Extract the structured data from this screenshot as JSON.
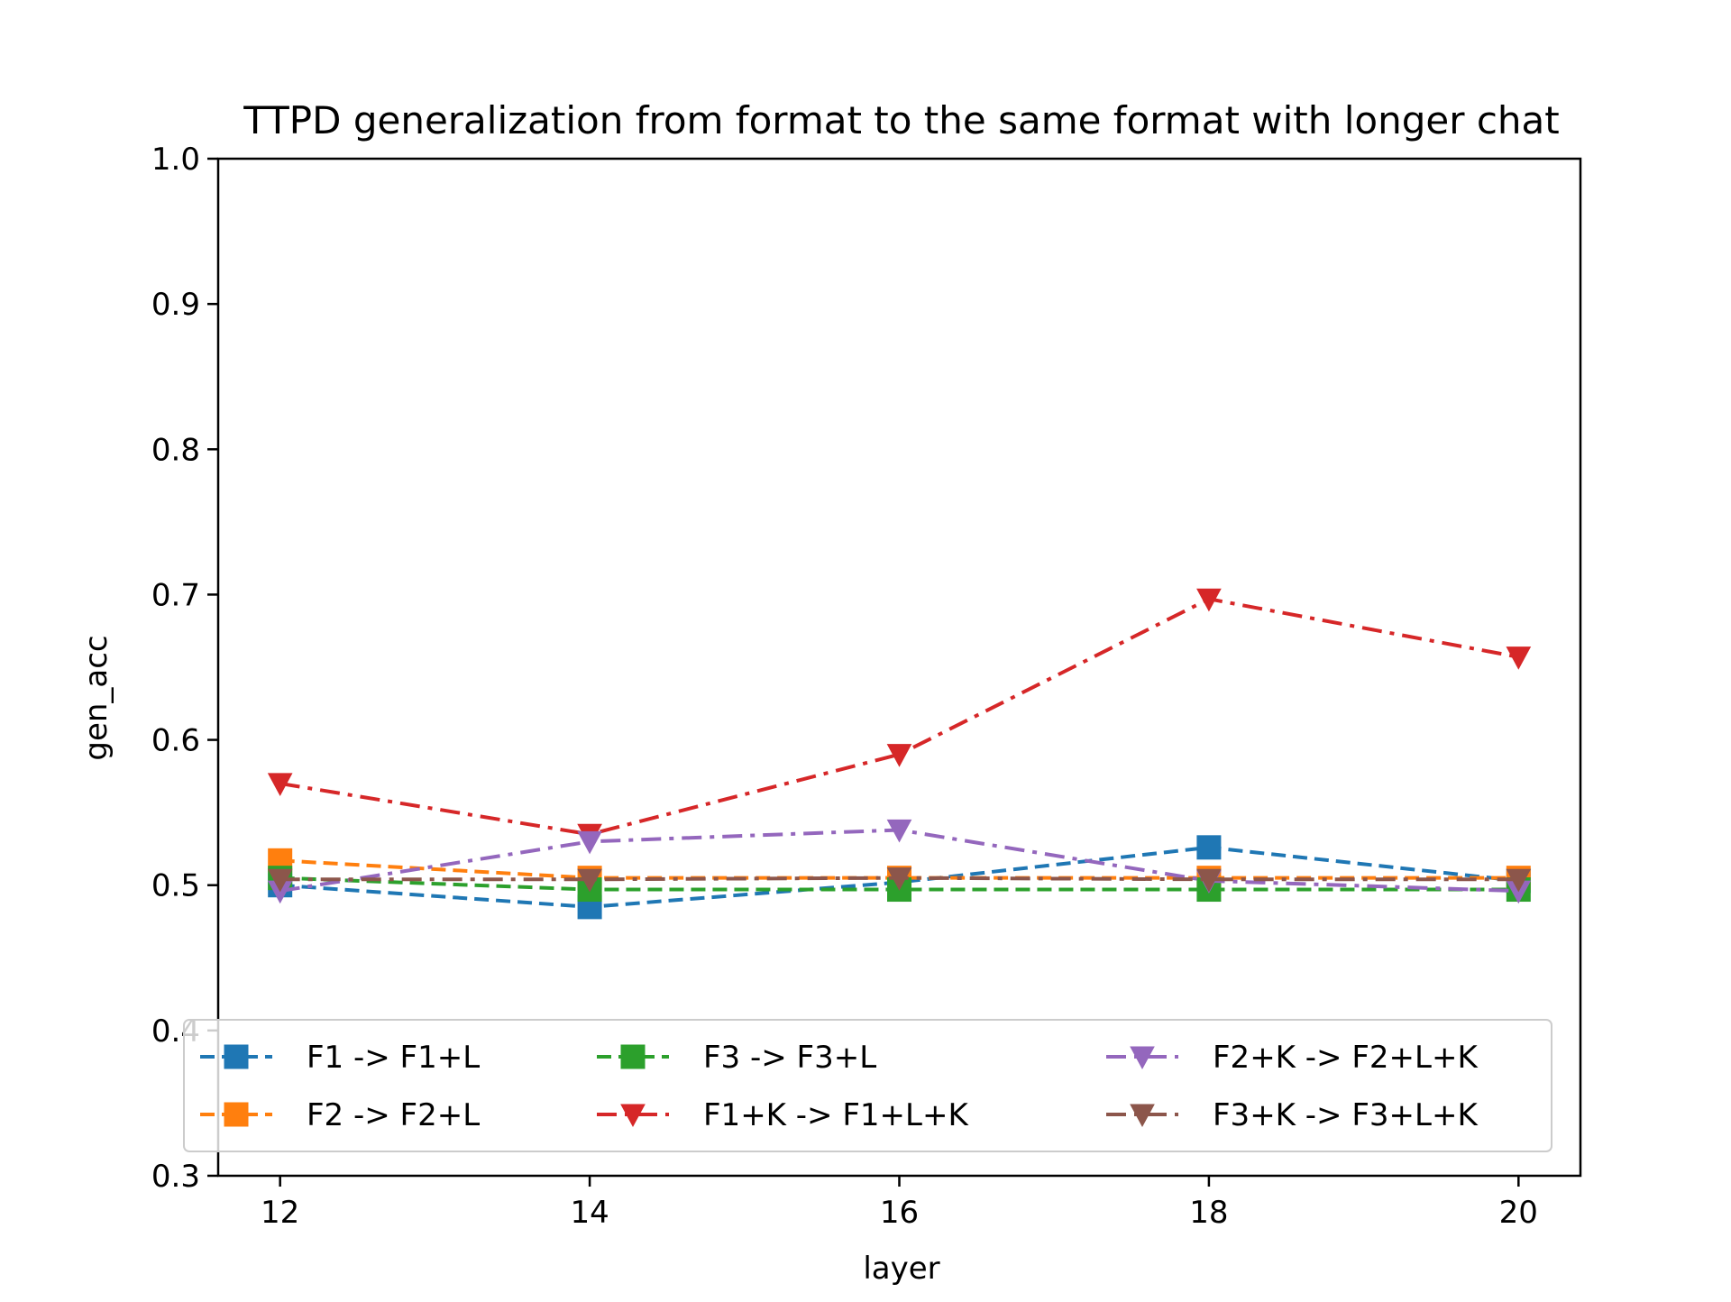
{
  "chart_data": {
    "type": "line",
    "title": "TTPD generalization from format to the same format with longer chat",
    "xlabel": "layer",
    "ylabel": "gen_acc",
    "x": [
      12,
      14,
      16,
      18,
      20
    ],
    "xlim": [
      11.6,
      20.4
    ],
    "ylim": [
      0.3,
      1.0
    ],
    "xticks": [
      "12",
      "14",
      "16",
      "18",
      "20"
    ],
    "yticks": [
      "0.3",
      "0.4",
      "0.5",
      "0.6",
      "0.7",
      "0.8",
      "0.9",
      "1.0"
    ],
    "grid": false,
    "legend_position": "lower center",
    "series": [
      {
        "name": "F1 -> F1+L",
        "color": "#1f77b4",
        "marker": "square",
        "linestyle": "dashed",
        "values": [
          0.5,
          0.485,
          0.502,
          0.526,
          0.503
        ]
      },
      {
        "name": "F2 -> F2+L",
        "color": "#ff7f0e",
        "marker": "square",
        "linestyle": "dashed",
        "values": [
          0.517,
          0.505,
          0.505,
          0.505,
          0.505
        ]
      },
      {
        "name": "F3 -> F3+L",
        "color": "#2ca02c",
        "marker": "square",
        "linestyle": "dashed",
        "values": [
          0.505,
          0.497,
          0.497,
          0.497,
          0.497
        ]
      },
      {
        "name": "F1+K -> F1+L+K",
        "color": "#d62728",
        "marker": "triangle-down",
        "linestyle": "dashdot",
        "values": [
          0.57,
          0.535,
          0.59,
          0.697,
          0.657
        ]
      },
      {
        "name": "F2+K -> F2+L+K",
        "color": "#9467bd",
        "marker": "triangle-down",
        "linestyle": "dashdot",
        "values": [
          0.496,
          0.53,
          0.538,
          0.503,
          0.496
        ]
      },
      {
        "name": "F3+K -> F3+L+K",
        "color": "#8c564b",
        "marker": "triangle-down",
        "linestyle": "dashdot",
        "values": [
          0.504,
          0.504,
          0.505,
          0.504,
          0.504
        ]
      }
    ]
  }
}
